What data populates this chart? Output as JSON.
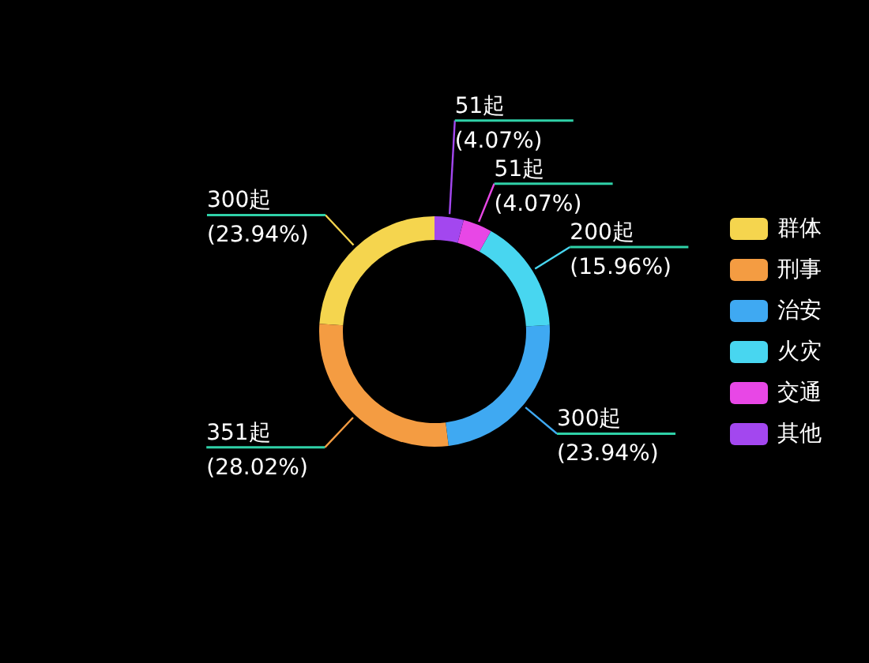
{
  "chart_data": {
    "type": "donut",
    "categories": [
      "群体",
      "刑事",
      "治安",
      "火灾",
      "交通",
      "其他"
    ],
    "values": [
      300,
      351,
      300,
      200,
      51,
      51
    ],
    "colors": [
      "#f5d54e",
      "#f49c42",
      "#3fa9f2",
      "#48d6f0",
      "#e847e6",
      "#a347ef"
    ],
    "value_labels": [
      "300起\n(23.94%)",
      "351起\n(28.02%)",
      "300起\n(23.94%)",
      "200起\n(15.96%)",
      "51起\n(4.07%)",
      "51起\n(4.07%)"
    ],
    "legend": "right"
  }
}
